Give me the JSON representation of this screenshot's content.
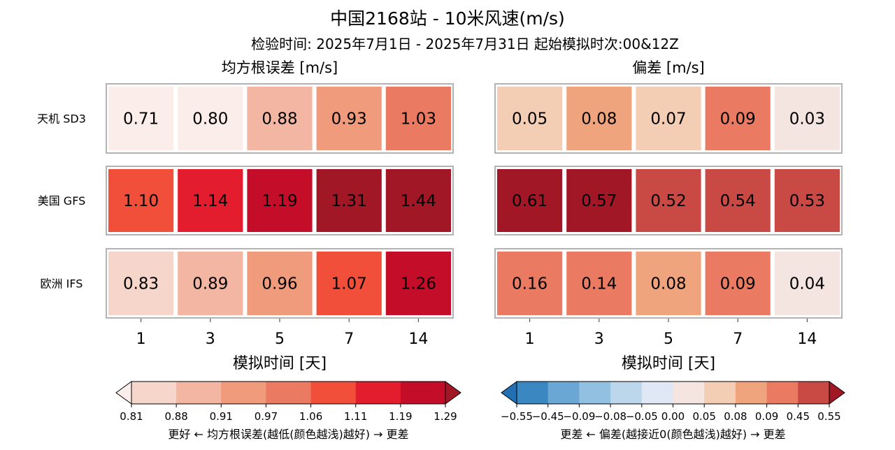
{
  "title": "中国2168站 - 10米风速(m/s)",
  "subtitle": "检验时间: 2025年7月1日 - 2025年7月31日 起始模拟时次:00&12Z",
  "chart_data": [
    {
      "type": "heatmap",
      "title": "均方根误差 [m/s]",
      "xlabel": "模拟时间 [天]",
      "x": [
        "1",
        "3",
        "5",
        "7",
        "14"
      ],
      "rows": [
        "天机 SD3",
        "美国 GFS",
        "欧洲 IFS"
      ],
      "values": [
        [
          0.71,
          0.8,
          0.88,
          0.93,
          1.03
        ],
        [
          1.1,
          1.14,
          1.19,
          1.31,
          1.44
        ],
        [
          0.83,
          0.89,
          0.96,
          1.07,
          1.26
        ]
      ],
      "colorbar": {
        "ticks": [
          "0.81",
          "0.88",
          "0.91",
          "0.97",
          "1.06",
          "1.11",
          "1.19",
          "1.29"
        ],
        "colors": [
          "#f6d5cb",
          "#f3b6a3",
          "#f09b7b",
          "#ea7b62",
          "#f24f3a",
          "#e41d2e",
          "#c40d28"
        ],
        "under_color": "#fbeeea",
        "over_color": "#a11725",
        "label": "更好 ← 均方根误差(越低(颜色越浅)越好) → 更差"
      }
    },
    {
      "type": "heatmap",
      "title": "偏差 [m/s]",
      "xlabel": "模拟时间 [天]",
      "x": [
        "1",
        "3",
        "5",
        "7",
        "14"
      ],
      "rows": [
        "天机 SD3",
        "美国 GFS",
        "欧洲 IFS"
      ],
      "values": [
        [
          0.05,
          0.08,
          0.07,
          0.09,
          0.03
        ],
        [
          0.61,
          0.57,
          0.52,
          0.54,
          0.53
        ],
        [
          0.16,
          0.14,
          0.08,
          0.09,
          0.04
        ]
      ],
      "colorbar": {
        "ticks": [
          "-0.55",
          "-0.45",
          "-0.09",
          "-0.08",
          "-0.05",
          "0.00",
          "0.05",
          "0.08",
          "0.09",
          "0.45",
          "0.55"
        ],
        "colors": [
          "#3a87c2",
          "#6aa7d4",
          "#92c0e1",
          "#bcd6ec",
          "#dfe8f4",
          "#f4e5e1",
          "#f4cdb5",
          "#f0a47d",
          "#ea7b62",
          "#c94a45"
        ],
        "under_color": "#2270b4",
        "over_color": "#a11725",
        "label": "更差 ← 偏差(越接近0(颜色越浅)越好) → 更差"
      }
    }
  ]
}
